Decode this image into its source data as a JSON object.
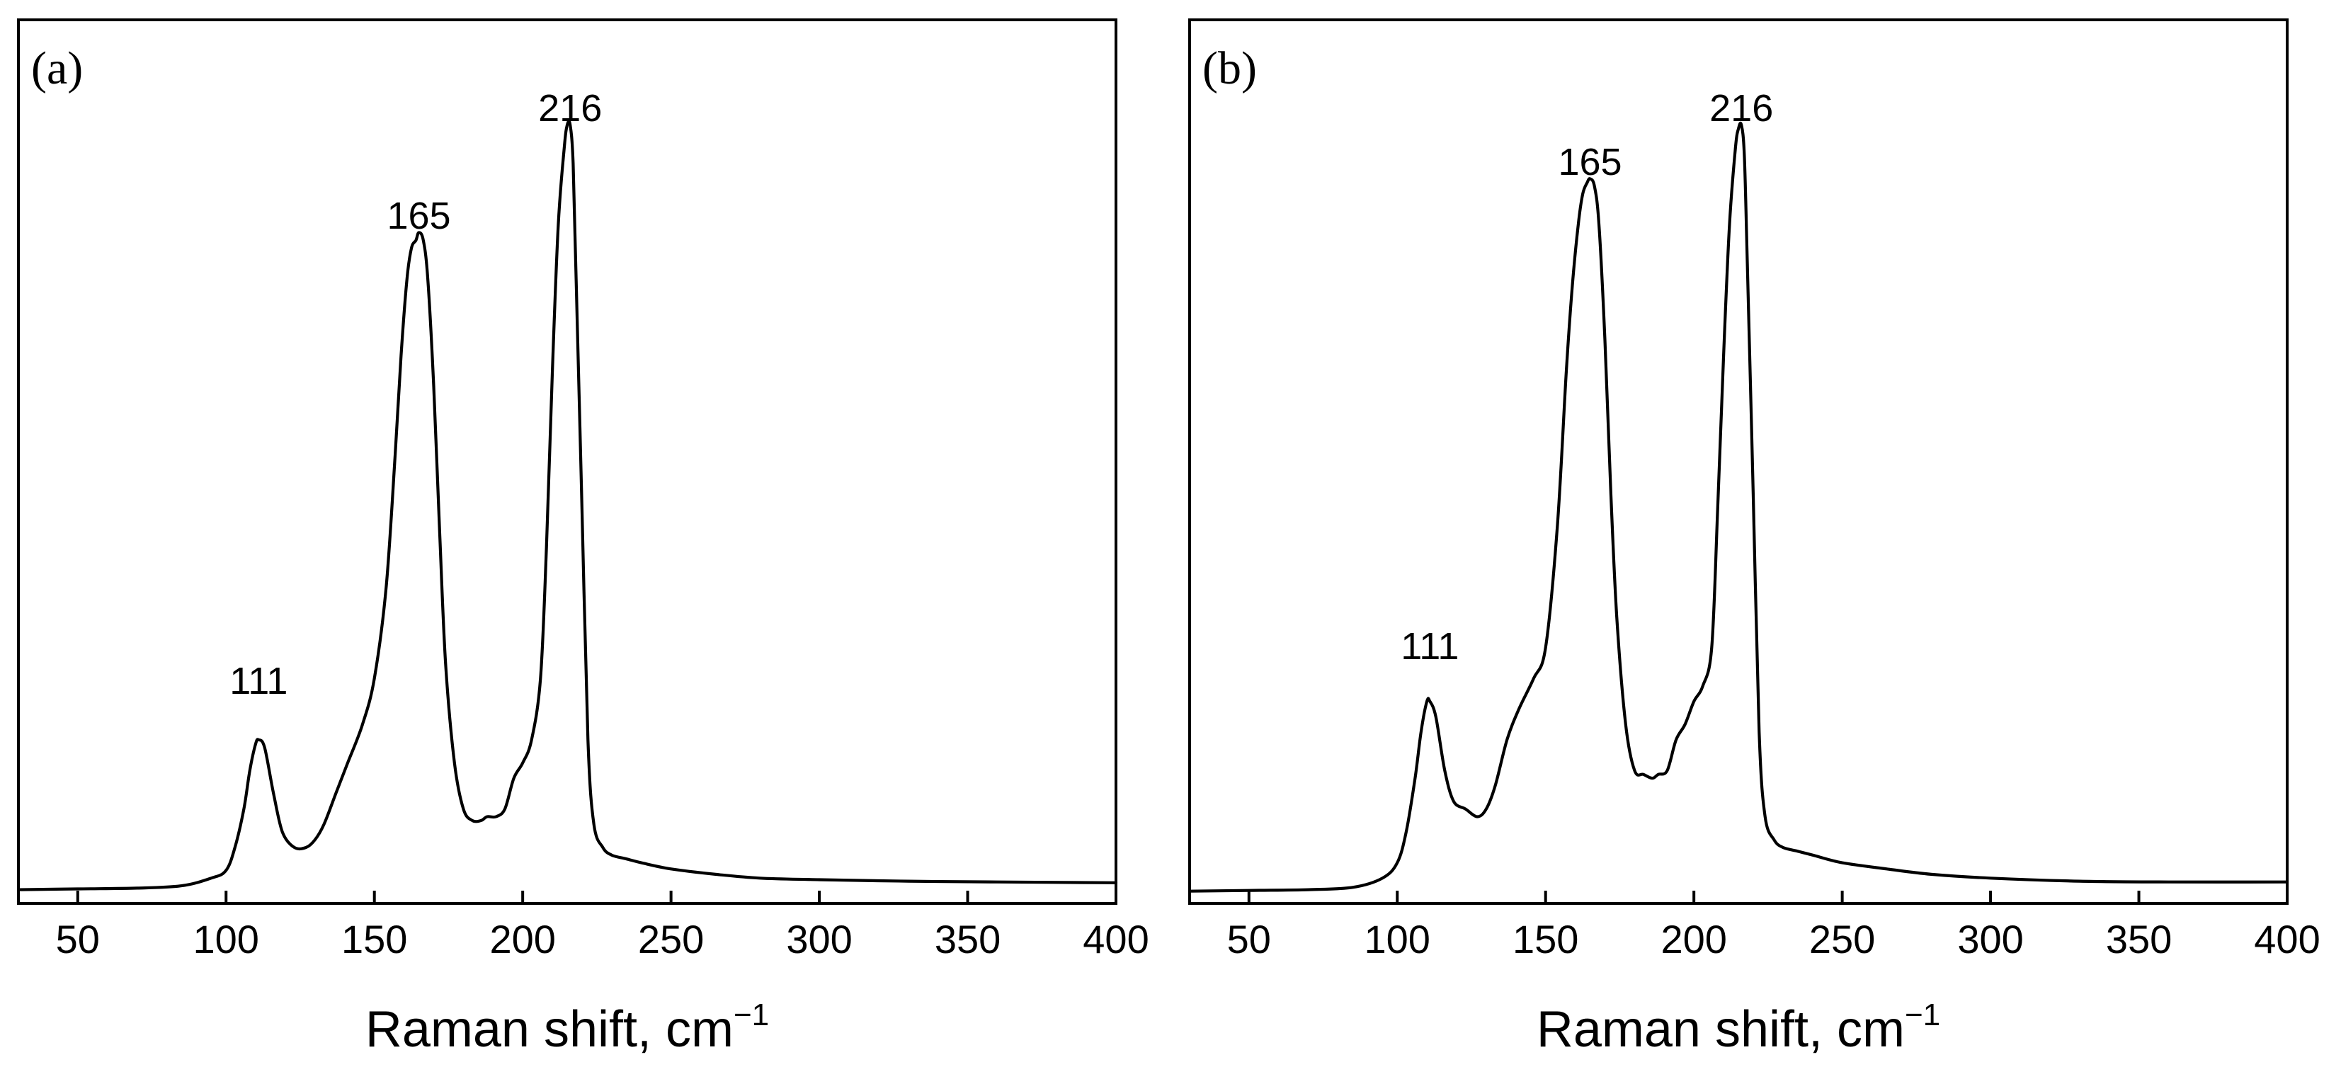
{
  "figure": {
    "panels": [
      "a",
      "b"
    ]
  },
  "chart_data": [
    {
      "type": "line",
      "panel_label": "(a)",
      "xlabel": "Raman shift, cm",
      "xlabel_superscript": "−1",
      "ylabel": "",
      "xlim": [
        30,
        400
      ],
      "ylim": [
        0,
        1.1
      ],
      "xticks": [
        50,
        100,
        150,
        200,
        250,
        300,
        350,
        400
      ],
      "y_ticks_shown": false,
      "peak_labels": [
        {
          "text": "111",
          "x": 111,
          "y": 0.26
        },
        {
          "text": "165",
          "x": 165,
          "y": 0.865
        },
        {
          "text": "216",
          "x": 216,
          "y": 1.005
        }
      ],
      "series": [
        {
          "name": "spectrum",
          "x": [
            30,
            50,
            70,
            85,
            95,
            100,
            103,
            106,
            108,
            110,
            111,
            113,
            116,
            119,
            123,
            127,
            130,
            133,
            137,
            141,
            146,
            150,
            154,
            157,
            159,
            161,
            162.5,
            164,
            165,
            166.5,
            168,
            170,
            172,
            174,
            177,
            180,
            183,
            186,
            188,
            191,
            194,
            197,
            200,
            203,
            206,
            208,
            210,
            212,
            214,
            215,
            216,
            217,
            218,
            220,
            222,
            224,
            227,
            230,
            235,
            240,
            250,
            265,
            280,
            300,
            330,
            360,
            400
          ],
          "y": [
            0.005,
            0.006,
            0.007,
            0.01,
            0.02,
            0.03,
            0.06,
            0.11,
            0.16,
            0.195,
            0.2,
            0.19,
            0.13,
            0.08,
            0.06,
            0.06,
            0.07,
            0.09,
            0.13,
            0.17,
            0.22,
            0.28,
            0.4,
            0.57,
            0.7,
            0.8,
            0.84,
            0.85,
            0.86,
            0.85,
            0.8,
            0.66,
            0.47,
            0.3,
            0.17,
            0.11,
            0.095,
            0.095,
            0.1,
            0.1,
            0.11,
            0.15,
            0.17,
            0.2,
            0.28,
            0.45,
            0.68,
            0.87,
            0.97,
            1.0,
            1.0,
            0.95,
            0.8,
            0.5,
            0.2,
            0.09,
            0.06,
            0.05,
            0.045,
            0.04,
            0.032,
            0.025,
            0.02,
            0.018,
            0.016,
            0.015,
            0.014
          ]
        }
      ]
    },
    {
      "type": "line",
      "panel_label": "(b)",
      "xlabel": "Raman shift, cm",
      "xlabel_superscript": "−1",
      "ylabel": "",
      "xlim": [
        30,
        400
      ],
      "ylim": [
        0,
        1.1
      ],
      "xticks": [
        50,
        100,
        150,
        200,
        250,
        300,
        350,
        400
      ],
      "y_ticks_shown": false,
      "peak_labels": [
        {
          "text": "111",
          "x": 111,
          "y": 0.305
        },
        {
          "text": "165",
          "x": 165,
          "y": 0.935
        },
        {
          "text": "216",
          "x": 216,
          "y": 1.005
        }
      ],
      "series": [
        {
          "name": "spectrum",
          "x": [
            30,
            50,
            70,
            85,
            95,
            100,
            103,
            106,
            108,
            110,
            111,
            113,
            116,
            119,
            123,
            127,
            130,
            133,
            137,
            141,
            146,
            150,
            154,
            157,
            159,
            161,
            162.5,
            164,
            165,
            166.5,
            168,
            170,
            172,
            174,
            177,
            180,
            183,
            186,
            188,
            191,
            194,
            197,
            200,
            203,
            206,
            208,
            210,
            212,
            214,
            215,
            216,
            217,
            218,
            220,
            222,
            224,
            227,
            230,
            235,
            240,
            250,
            265,
            280,
            300,
            330,
            360,
            400
          ],
          "y": [
            0.003,
            0.004,
            0.005,
            0.008,
            0.02,
            0.04,
            0.08,
            0.15,
            0.21,
            0.25,
            0.25,
            0.23,
            0.16,
            0.12,
            0.11,
            0.1,
            0.11,
            0.14,
            0.2,
            0.24,
            0.28,
            0.32,
            0.48,
            0.68,
            0.79,
            0.87,
            0.91,
            0.925,
            0.93,
            0.92,
            0.87,
            0.72,
            0.52,
            0.36,
            0.22,
            0.16,
            0.155,
            0.15,
            0.155,
            0.16,
            0.2,
            0.22,
            0.25,
            0.27,
            0.32,
            0.5,
            0.7,
            0.87,
            0.97,
            0.995,
            1.0,
            0.96,
            0.82,
            0.52,
            0.21,
            0.1,
            0.07,
            0.06,
            0.055,
            0.05,
            0.04,
            0.032,
            0.025,
            0.02,
            0.016,
            0.015,
            0.015
          ]
        }
      ]
    }
  ]
}
